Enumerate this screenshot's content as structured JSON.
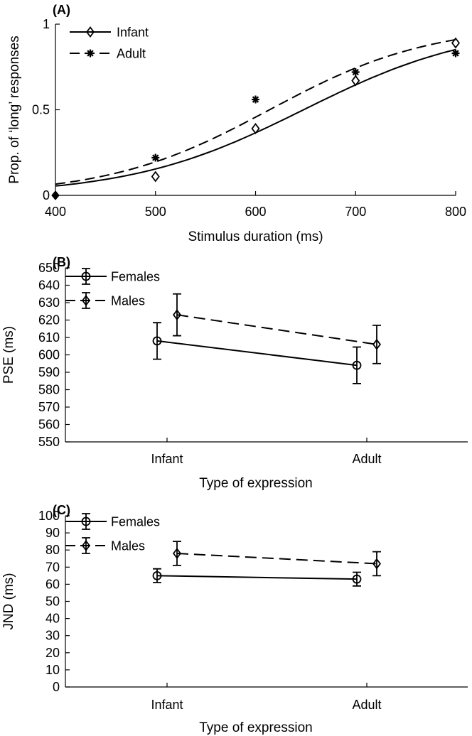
{
  "chart_data": [
    {
      "panel_label": "(A)",
      "type": "line",
      "xlabel": "Stimulus duration (ms)",
      "ylabel": "Prop. of ‘long’ responses",
      "xlim": [
        400,
        800
      ],
      "ylim": [
        0,
        1
      ],
      "xticks": [
        400,
        500,
        600,
        700,
        800
      ],
      "yticks": [
        0,
        0.5,
        1
      ],
      "ytick_labels": [
        "0",
        "0.5",
        "1"
      ],
      "grid": false,
      "legend_position": "top-left",
      "series": [
        {
          "name": "Infant",
          "marker": "diamond",
          "line_style": "solid",
          "x": [
            400,
            500,
            600,
            700,
            800
          ],
          "y": [
            0.0,
            0.11,
            0.39,
            0.67,
            0.89
          ],
          "fit": {
            "model": "logistic",
            "pse": 648,
            "slope": 0.0115
          }
        },
        {
          "name": "Adult",
          "marker": "asterisk",
          "line_style": "dashed",
          "x": [
            400,
            500,
            600,
            700,
            800
          ],
          "y": [
            0.0,
            0.22,
            0.56,
            0.72,
            0.83
          ],
          "fit": {
            "model": "logistic",
            "pse": 614,
            "slope": 0.0124
          }
        }
      ]
    },
    {
      "panel_label": "(B)",
      "type": "line",
      "categories": [
        "Infant",
        "Adult"
      ],
      "xlabel": "Type of expression",
      "ylabel": "PSE (ms)",
      "ylim": [
        550,
        650
      ],
      "yticks": [
        550,
        560,
        570,
        580,
        590,
        600,
        610,
        620,
        630,
        640,
        650
      ],
      "grid": false,
      "legend_position": "top-left",
      "series": [
        {
          "name": "Females",
          "marker": "circle",
          "line_style": "solid",
          "values": [
            608,
            594
          ],
          "errors": [
            10.5,
            10.5
          ]
        },
        {
          "name": "Males",
          "marker": "diamond",
          "line_style": "dashed",
          "values": [
            623,
            606
          ],
          "errors": [
            12,
            11
          ]
        }
      ]
    },
    {
      "panel_label": "(C)",
      "type": "line",
      "categories": [
        "Infant",
        "Adult"
      ],
      "xlabel": "Type of expression",
      "ylabel": "JND (ms)",
      "ylim": [
        0,
        100
      ],
      "yticks": [
        0,
        10,
        20,
        30,
        40,
        50,
        60,
        70,
        80,
        90,
        100
      ],
      "grid": false,
      "legend_position": "top-left",
      "series": [
        {
          "name": "Females",
          "marker": "circle",
          "line_style": "solid",
          "values": [
            65,
            63
          ],
          "errors": [
            4,
            4
          ]
        },
        {
          "name": "Males",
          "marker": "diamond",
          "line_style": "dashed",
          "values": [
            78,
            72
          ],
          "errors": [
            7,
            7
          ]
        }
      ]
    }
  ]
}
